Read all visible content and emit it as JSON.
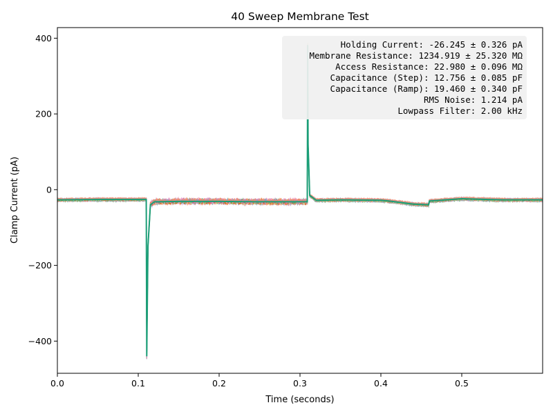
{
  "chart_data": {
    "type": "line",
    "title": "40 Sweep Membrane Test",
    "xlabel": "Time (seconds)",
    "ylabel": "Clamp Current (pA)",
    "xlim": [
      0,
      0.6
    ],
    "ylim": [
      -485,
      428
    ],
    "x_ticks": [
      0.0,
      0.1,
      0.2,
      0.3,
      0.4,
      0.5
    ],
    "x_tick_labels": [
      "0.0",
      "0.1",
      "0.2",
      "0.3",
      "0.4",
      "0.5"
    ],
    "y_ticks": [
      400,
      200,
      0,
      -200,
      -400
    ],
    "y_tick_labels": [
      "400",
      "200",
      "0",
      "−200",
      "−400"
    ],
    "grid": false,
    "sweep_count": 40,
    "series_colors": [
      "#4daf7c",
      "#e78ac3",
      "#8da0cb",
      "#fc8d62",
      "#66c2a5",
      "#a6d854",
      "#e5c494",
      "#d95f02",
      "#1b9e77",
      "#e7298a"
    ],
    "trace": {
      "x": [
        0.0,
        0.05,
        0.1,
        0.1099,
        0.1105,
        0.112,
        0.115,
        0.12,
        0.15,
        0.2,
        0.25,
        0.3,
        0.309,
        0.3095,
        0.31,
        0.312,
        0.32,
        0.35,
        0.4,
        0.41,
        0.44,
        0.459,
        0.46,
        0.48,
        0.5,
        0.55,
        0.6
      ],
      "y": [
        -27,
        -26,
        -26,
        -26,
        -440,
        -150,
        -40,
        -32,
        -31,
        -31,
        -32,
        -32,
        -32,
        382,
        120,
        -15,
        -28,
        -27,
        -28,
        -30,
        -38,
        -40,
        -30,
        -27,
        -24,
        -27,
        -27
      ]
    },
    "stats_box": {
      "lines": [
        "Holding Current: -26.245 ± 0.326 pA",
        "Membrane Resistance: 1234.919 ± 25.320 MΩ",
        "Access Resistance: 22.980 ± 0.096 MΩ",
        "Capacitance (Step): 12.756 ± 0.085 pF",
        "Capacitance (Ramp): 19.460 ± 0.340 pF",
        "RMS Noise: 1.214 pA",
        "Lowpass Filter: 2.00 kHz"
      ],
      "placement": "top-right"
    }
  }
}
